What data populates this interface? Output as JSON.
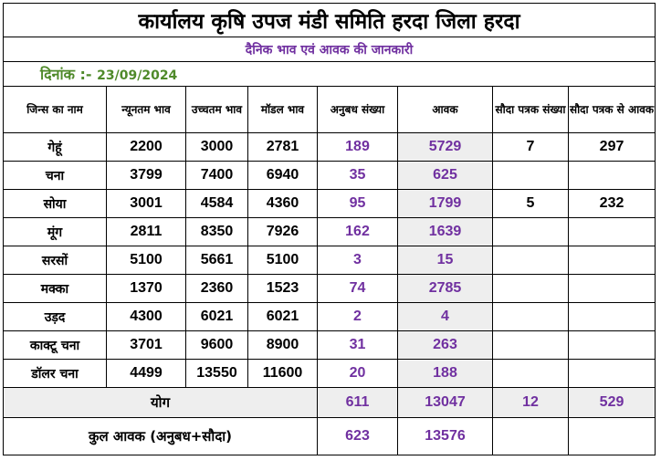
{
  "title": "कार्यालय कृषि उपज मंडी समिति हरदा जिला हरदा",
  "subtitle": "दैनिक भाव एवं आवक की जानकारी",
  "date_label": "दिनांक :-",
  "date_value": "23/09/2024",
  "headers": {
    "name": "जिन्स का नाम",
    "min": "न्यूनतम भाव",
    "max": "उच्चतम भाव",
    "model": "मॉडल भाव",
    "anubandh": "अनुबध संख्या",
    "aavak": "आवक",
    "sauda_count": "सौदा पत्रक संख्या",
    "sauda_aavak": "सौदा पत्रक से आवक"
  },
  "rows": [
    {
      "name": "गेहूं",
      "min": "2200",
      "max": "3000",
      "model": "2781",
      "anubandh": "189",
      "aavak": "5729",
      "sauda_count": "7",
      "sauda_aavak": "297"
    },
    {
      "name": "चना",
      "min": "3799",
      "max": "7400",
      "model": "6940",
      "anubandh": "35",
      "aavak": "625",
      "sauda_count": "",
      "sauda_aavak": ""
    },
    {
      "name": "सोया",
      "min": "3001",
      "max": "4584",
      "model": "4360",
      "anubandh": "95",
      "aavak": "1799",
      "sauda_count": "5",
      "sauda_aavak": "232"
    },
    {
      "name": "मूंग",
      "min": "2811",
      "max": "8350",
      "model": "7926",
      "anubandh": "162",
      "aavak": "1639",
      "sauda_count": "",
      "sauda_aavak": ""
    },
    {
      "name": "सरसों",
      "min": "5100",
      "max": "5661",
      "model": "5100",
      "anubandh": "3",
      "aavak": "15",
      "sauda_count": "",
      "sauda_aavak": ""
    },
    {
      "name": "मक्का",
      "min": "1370",
      "max": "2360",
      "model": "1523",
      "anubandh": "74",
      "aavak": "2785",
      "sauda_count": "",
      "sauda_aavak": ""
    },
    {
      "name": "उड़द",
      "min": "4300",
      "max": "6021",
      "model": "6021",
      "anubandh": "2",
      "aavak": "4",
      "sauda_count": "",
      "sauda_aavak": ""
    },
    {
      "name": "काक्टू चना",
      "min": "3701",
      "max": "9600",
      "model": "8900",
      "anubandh": "31",
      "aavak": "263",
      "sauda_count": "",
      "sauda_aavak": ""
    },
    {
      "name": "डॉलर चना",
      "min": "4499",
      "max": "13550",
      "model": "11600",
      "anubandh": "20",
      "aavak": "188",
      "sauda_count": "",
      "sauda_aavak": ""
    }
  ],
  "total": {
    "label": "योग",
    "anubandh": "611",
    "aavak": "13047",
    "sauda_count": "12",
    "sauda_aavak": "529"
  },
  "grand_total": {
    "label": "कुल आवक (अनुबध+सौदा)",
    "anubandh": "623",
    "aavak": "13576"
  }
}
